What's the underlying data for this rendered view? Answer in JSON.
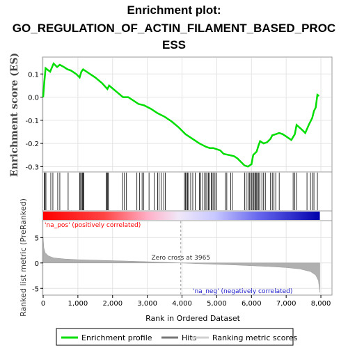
{
  "title_line1": "Enrichment plot:",
  "title_line2": "GO_REGULATION_OF_ACTIN_FILAMENT_BASED_PROC",
  "title_line3": "ESS",
  "colors": {
    "enrichment": "#00dd00",
    "hits": "#000000",
    "metric": "#b0b0b0",
    "pos_label": "#ff0000",
    "neg_label": "#2020cc",
    "pos_band": "#ff0000",
    "neg_band": "#0000cc"
  },
  "legend": {
    "enrichment_label": "Enrichment profile",
    "hits_label": "Hits",
    "ranking_label": "Ranking metric scores"
  },
  "chart_data": [
    {
      "type": "line",
      "name": "enrichment-profile",
      "ylabel": "Enrichment score (ES)",
      "xlim": [
        0,
        8300
      ],
      "ylim": [
        -0.32,
        0.17
      ],
      "yticks": [
        "0.1",
        "0.0",
        "-0.1",
        "-0.2",
        "-0.3"
      ],
      "grid": true,
      "points": [
        [
          0,
          0.0
        ],
        [
          30,
          0.06
        ],
        [
          70,
          0.125
        ],
        [
          200,
          0.11
        ],
        [
          300,
          0.145
        ],
        [
          400,
          0.13
        ],
        [
          480,
          0.14
        ],
        [
          600,
          0.13
        ],
        [
          700,
          0.12
        ],
        [
          800,
          0.115
        ],
        [
          950,
          0.1
        ],
        [
          1050,
          0.085
        ],
        [
          1100,
          0.11
        ],
        [
          1150,
          0.12
        ],
        [
          1300,
          0.105
        ],
        [
          1500,
          0.085
        ],
        [
          1700,
          0.06
        ],
        [
          1850,
          0.035
        ],
        [
          1900,
          0.05
        ],
        [
          2100,
          0.025
        ],
        [
          2300,
          0.0
        ],
        [
          2450,
          0.0
        ],
        [
          2600,
          -0.015
        ],
        [
          2750,
          -0.03
        ],
        [
          2900,
          -0.035
        ],
        [
          3100,
          -0.05
        ],
        [
          3300,
          -0.07
        ],
        [
          3500,
          -0.085
        ],
        [
          3700,
          -0.105
        ],
        [
          3900,
          -0.13
        ],
        [
          4100,
          -0.16
        ],
        [
          4300,
          -0.18
        ],
        [
          4500,
          -0.2
        ],
        [
          4700,
          -0.215
        ],
        [
          4800,
          -0.22
        ],
        [
          4900,
          -0.22
        ],
        [
          5000,
          -0.225
        ],
        [
          5100,
          -0.23
        ],
        [
          5200,
          -0.245
        ],
        [
          5350,
          -0.25
        ],
        [
          5500,
          -0.255
        ],
        [
          5600,
          -0.265
        ],
        [
          5700,
          -0.28
        ],
        [
          5800,
          -0.295
        ],
        [
          5900,
          -0.3
        ],
        [
          6000,
          -0.29
        ],
        [
          6050,
          -0.25
        ],
        [
          6150,
          -0.235
        ],
        [
          6200,
          -0.21
        ],
        [
          6250,
          -0.19
        ],
        [
          6350,
          -0.2
        ],
        [
          6450,
          -0.195
        ],
        [
          6550,
          -0.18
        ],
        [
          6600,
          -0.165
        ],
        [
          6700,
          -0.16
        ],
        [
          6800,
          -0.155
        ],
        [
          6900,
          -0.16
        ],
        [
          7000,
          -0.17
        ],
        [
          7150,
          -0.185
        ],
        [
          7250,
          -0.16
        ],
        [
          7300,
          -0.12
        ],
        [
          7450,
          -0.14
        ],
        [
          7550,
          -0.155
        ],
        [
          7650,
          -0.12
        ],
        [
          7750,
          -0.09
        ],
        [
          7800,
          -0.06
        ],
        [
          7850,
          -0.045
        ],
        [
          7900,
          0.01
        ],
        [
          7950,
          0.005
        ]
      ]
    },
    {
      "type": "area",
      "name": "ranked-list-metric",
      "ylabel": "Ranked list metric (PreRanked)",
      "xlabel": "Rank in Ordered Dataset",
      "xlim": [
        0,
        8300
      ],
      "ylim": [
        -6.2,
        8.2
      ],
      "yticks": [
        "5",
        "0",
        "-5"
      ],
      "xticks": [
        "0",
        "1,000",
        "2,000",
        "3,000",
        "4,000",
        "5,000",
        "6,000",
        "7,000",
        "8,000"
      ],
      "zero_cross_label": "Zero cross at 3965",
      "zero_cross_rank": 3965,
      "pos_label": "'na_pos' (positively correlated)",
      "neg_label": "'na_neg' (negatively correlated)",
      "points": [
        [
          0,
          5.0
        ],
        [
          20,
          3.0
        ],
        [
          60,
          2.0
        ],
        [
          150,
          1.4
        ],
        [
          300,
          1.0
        ],
        [
          600,
          0.8
        ],
        [
          1000,
          0.65
        ],
        [
          1500,
          0.55
        ],
        [
          2000,
          0.45
        ],
        [
          2500,
          0.35
        ],
        [
          3000,
          0.25
        ],
        [
          3500,
          0.12
        ],
        [
          3965,
          0.0
        ],
        [
          4500,
          -0.15
        ],
        [
          5000,
          -0.28
        ],
        [
          5500,
          -0.4
        ],
        [
          6000,
          -0.55
        ],
        [
          6500,
          -0.7
        ],
        [
          7000,
          -0.9
        ],
        [
          7400,
          -1.2
        ],
        [
          7700,
          -1.7
        ],
        [
          7850,
          -2.4
        ],
        [
          7930,
          -3.5
        ],
        [
          7970,
          -5.8
        ]
      ]
    }
  ],
  "hits": [
    30,
    55,
    80,
    220,
    280,
    420,
    480,
    720,
    1050,
    1080,
    1100,
    1130,
    1150,
    1170,
    1820,
    1840,
    1860,
    1880,
    2290,
    2340,
    2400,
    2700,
    2780,
    2850,
    2900,
    3050,
    3200,
    3300,
    3340,
    3400,
    3480,
    3520,
    4070,
    4100,
    4130,
    4160,
    4190,
    4250,
    4310,
    4380,
    4500,
    4540,
    4600,
    4650,
    4690,
    4720,
    4760,
    4800,
    4840,
    4870,
    4910,
    4950,
    5000,
    5250,
    5290,
    5400,
    5450,
    5800,
    5850,
    5900,
    5940,
    5980,
    6010,
    6040,
    6070,
    6100,
    6120,
    6150,
    6180,
    6210,
    6240,
    6300,
    6350,
    6400,
    6550,
    6600,
    6650,
    6700,
    6800,
    7200,
    7250,
    7300,
    7600,
    7700,
    7750,
    7800,
    7900
  ]
}
